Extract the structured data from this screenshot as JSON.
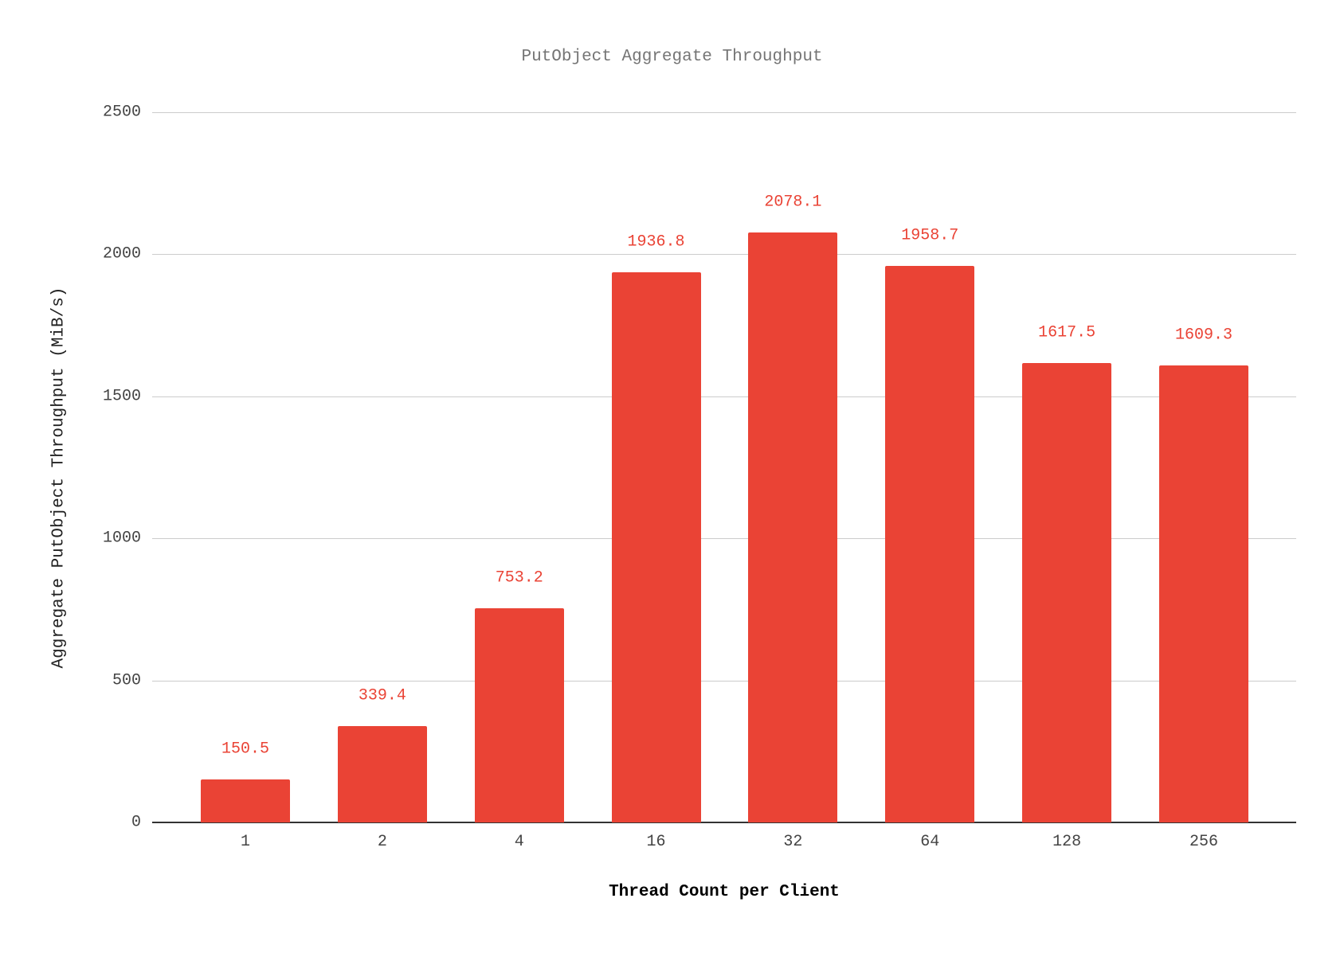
{
  "chart_data": {
    "type": "bar",
    "title": "PutObject Aggregate Throughput",
    "xlabel": "Thread Count per Client",
    "ylabel": "Aggregate PutObject Throughput (MiB/s)",
    "categories": [
      "1",
      "2",
      "4",
      "16",
      "32",
      "64",
      "128",
      "256"
    ],
    "values": [
      150.5,
      339.4,
      753.2,
      1936.8,
      2078.1,
      1958.7,
      1617.5,
      1609.3
    ],
    "value_labels": [
      "150.5",
      "339.4",
      "753.2",
      "1936.8",
      "2078.1",
      "1958.7",
      "1617.5",
      "1609.3"
    ],
    "ylim": [
      0,
      2500
    ],
    "yticks": [
      "0",
      "500",
      "1000",
      "1500",
      "2000",
      "2500"
    ],
    "grid": true,
    "legend": null,
    "bar_color": "#ea4335",
    "title_color": "#757575"
  }
}
